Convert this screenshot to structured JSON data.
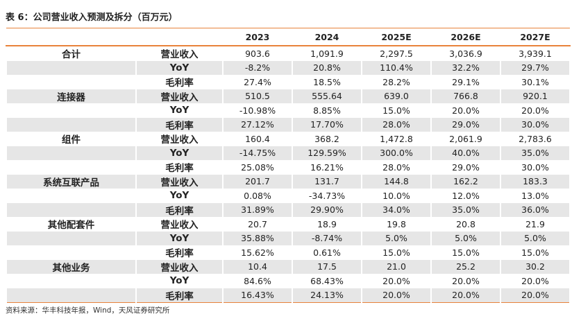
{
  "title": "表 6：公司营业收入预测及拆分（百万元）",
  "columns": [
    "2023",
    "2024",
    "2025E",
    "2026E",
    "2027E"
  ],
  "groups": [
    {
      "name": "合计",
      "rows": [
        {
          "metric": "营业收入",
          "values": [
            "903.6",
            "1,091.9",
            "2,297.5",
            "3,036.9",
            "3,939.1"
          ]
        },
        {
          "metric": "YoY",
          "values": [
            "-8.2%",
            "20.8%",
            "110.4%",
            "32.2%",
            "29.7%"
          ]
        },
        {
          "metric": "毛利率",
          "values": [
            "27.4%",
            "18.5%",
            "28.2%",
            "29.1%",
            "30.1%"
          ]
        }
      ]
    },
    {
      "name": "连接器",
      "rows": [
        {
          "metric": "营业收入",
          "values": [
            "510.5",
            "555.64",
            "639.0",
            "766.8",
            "920.1"
          ]
        },
        {
          "metric": "YoY",
          "values": [
            "-10.98%",
            "8.85%",
            "15.0%",
            "20.0%",
            "20.0%"
          ]
        },
        {
          "metric": "毛利率",
          "values": [
            "27.12%",
            "17.70%",
            "28.0%",
            "29.0%",
            "30.0%"
          ]
        }
      ]
    },
    {
      "name": "组件",
      "rows": [
        {
          "metric": "营业收入",
          "values": [
            "160.4",
            "368.2",
            "1,472.8",
            "2,061.9",
            "2,783.6"
          ]
        },
        {
          "metric": "YoY",
          "values": [
            "-14.75%",
            "129.59%",
            "300.0%",
            "40.0%",
            "35.0%"
          ]
        },
        {
          "metric": "毛利率",
          "values": [
            "25.08%",
            "16.21%",
            "28.0%",
            "29.0%",
            "30.0%"
          ]
        }
      ]
    },
    {
      "name": "系统互联产品",
      "rows": [
        {
          "metric": "营业收入",
          "values": [
            "201.7",
            "131.7",
            "144.8",
            "162.2",
            "183.3"
          ]
        },
        {
          "metric": "YoY",
          "values": [
            "0.08%",
            "-34.73%",
            "10.0%",
            "12.0%",
            "13.0%"
          ]
        },
        {
          "metric": "毛利率",
          "values": [
            "31.89%",
            "29.90%",
            "34.0%",
            "35.0%",
            "36.0%"
          ]
        }
      ]
    },
    {
      "name": "其他配套件",
      "rows": [
        {
          "metric": "营业收入",
          "values": [
            "20.7",
            "18.9",
            "19.8",
            "20.8",
            "21.9"
          ]
        },
        {
          "metric": "YoY",
          "values": [
            "35.88%",
            "-8.74%",
            "5.0%",
            "5.0%",
            "5.0%"
          ]
        },
        {
          "metric": "毛利率",
          "values": [
            "15.62%",
            "0.61%",
            "15.0%",
            "15.0%",
            "15.0%"
          ]
        }
      ]
    },
    {
      "name": "其他业务",
      "rows": [
        {
          "metric": "营业收入",
          "values": [
            "10.4",
            "17.5",
            "21.0",
            "25.2",
            "30.2"
          ]
        },
        {
          "metric": "YoY",
          "values": [
            "84.6%",
            "68.43%",
            "20.0%",
            "20.0%",
            "20.0%"
          ]
        },
        {
          "metric": "毛利率",
          "values": [
            "16.43%",
            "24.13%",
            "20.0%",
            "20.0%",
            "20.0%"
          ]
        }
      ]
    }
  ],
  "source": "资料来源：华丰科技年报，Wind，天风证券研究所"
}
